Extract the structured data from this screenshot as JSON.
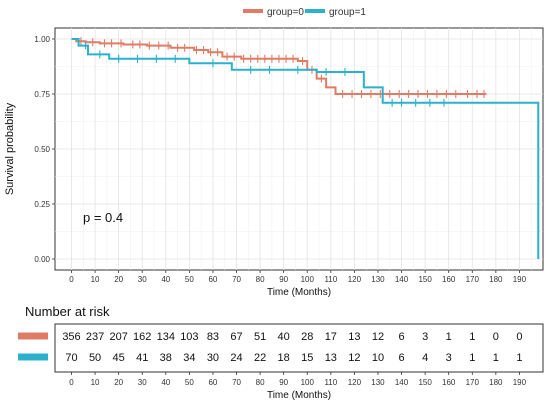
{
  "legend": {
    "items": [
      {
        "label": "group=0",
        "color": "#e07b64"
      },
      {
        "label": "group=1",
        "color": "#2bb1cc"
      }
    ]
  },
  "chart_data": {
    "type": "line",
    "ylabel": "Survival probability",
    "xlabel": "Time (Months)",
    "xlim": [
      -7,
      200
    ],
    "ylim": [
      -0.05,
      1.05
    ],
    "x_ticks": [
      0,
      10,
      20,
      30,
      40,
      50,
      60,
      70,
      80,
      90,
      100,
      110,
      120,
      130,
      140,
      150,
      160,
      170,
      180,
      190
    ],
    "y_ticks": [
      {
        "value": 0,
        "label": "0.00"
      },
      {
        "value": 0.25,
        "label": "0.25"
      },
      {
        "value": 0.5,
        "label": "0.50"
      },
      {
        "value": 0.75,
        "label": "0.75"
      },
      {
        "value": 1,
        "label": "1.00"
      }
    ],
    "annotation": "p = 0.4",
    "grid": true,
    "legend_position": "top",
    "series": [
      {
        "name": "group=0",
        "color": "#e07b64",
        "steps": [
          [
            0,
            1.0
          ],
          [
            2,
            0.99
          ],
          [
            6,
            0.985
          ],
          [
            12,
            0.98
          ],
          [
            22,
            0.975
          ],
          [
            32,
            0.97
          ],
          [
            42,
            0.96
          ],
          [
            52,
            0.95
          ],
          [
            58,
            0.94
          ],
          [
            64,
            0.92
          ],
          [
            72,
            0.91
          ],
          [
            96,
            0.9
          ],
          [
            100,
            0.86
          ],
          [
            104,
            0.82
          ],
          [
            108,
            0.78
          ],
          [
            112,
            0.75
          ],
          [
            176,
            0.75
          ]
        ],
        "censor_x": [
          4,
          9,
          14,
          17,
          21,
          26,
          29,
          33,
          37,
          41,
          45,
          48,
          53,
          56,
          59,
          62,
          66,
          69,
          73,
          76,
          79,
          82,
          85,
          88,
          91,
          94,
          98,
          102,
          106,
          115,
          119,
          123,
          127,
          131,
          135,
          139,
          143,
          147,
          151,
          155,
          159,
          163,
          168,
          172,
          175
        ]
      },
      {
        "name": "group=1",
        "color": "#2bb1cc",
        "steps": [
          [
            0,
            1.0
          ],
          [
            3,
            0.97
          ],
          [
            7,
            0.93
          ],
          [
            16,
            0.91
          ],
          [
            50,
            0.89
          ],
          [
            68,
            0.86
          ],
          [
            104,
            0.85
          ],
          [
            124,
            0.78
          ],
          [
            132,
            0.71
          ],
          [
            198,
            0.71
          ],
          [
            198,
            0.0
          ]
        ],
        "censor_x": [
          6,
          12,
          20,
          28,
          36,
          44,
          60,
          76,
          84,
          96,
          108,
          116,
          136,
          140,
          146,
          152,
          158
        ]
      }
    ],
    "risk_table": {
      "title": "Number at risk",
      "xlabel": "Time (Months)",
      "times": [
        0,
        10,
        20,
        30,
        40,
        50,
        60,
        70,
        80,
        90,
        100,
        110,
        120,
        130,
        140,
        150,
        160,
        170,
        180,
        190
      ],
      "rows": [
        {
          "group": "group=0",
          "color": "#e07b64",
          "counts": [
            "356",
            "237",
            "207",
            "162",
            "134",
            "103",
            "83",
            "67",
            "51",
            "40",
            "28",
            "17",
            "13",
            "12",
            "6",
            "3",
            "1",
            "1",
            "0",
            "0"
          ]
        },
        {
          "group": "group=1",
          "color": "#2bb1cc",
          "counts": [
            "70",
            "50",
            "45",
            "41",
            "38",
            "34",
            "30",
            "24",
            "22",
            "18",
            "15",
            "13",
            "12",
            "10",
            "6",
            "4",
            "3",
            "1",
            "1",
            "1"
          ]
        }
      ]
    }
  }
}
